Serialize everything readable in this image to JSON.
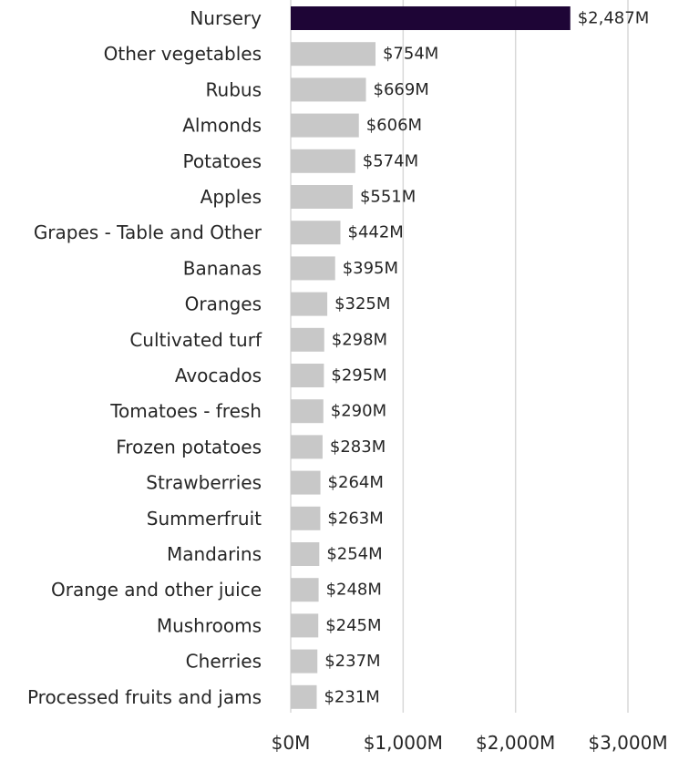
{
  "chart_data": {
    "type": "bar",
    "orientation": "horizontal",
    "categories": [
      "Nursery",
      "Other vegetables",
      "Rubus",
      "Almonds",
      "Potatoes",
      "Apples",
      "Grapes - Table and Other",
      "Bananas",
      "Oranges",
      "Cultivated turf",
      "Avocados",
      "Tomatoes - fresh",
      "Frozen potatoes",
      "Strawberries",
      "Summerfruit",
      "Mandarins",
      "Orange and other juice",
      "Mushrooms",
      "Cherries",
      "Processed fruits and jams"
    ],
    "values": [
      2487,
      754,
      669,
      606,
      574,
      551,
      442,
      395,
      325,
      298,
      295,
      290,
      283,
      264,
      263,
      254,
      248,
      245,
      237,
      231
    ],
    "value_labels": [
      "$2,487M",
      "$754M",
      "$669M",
      "$606M",
      "$574M",
      "$551M",
      "$442M",
      "$395M",
      "$325M",
      "$298M",
      "$295M",
      "$290M",
      "$283M",
      "$264M",
      "$263M",
      "$254M",
      "$248M",
      "$245M",
      "$237M",
      "$231M"
    ],
    "x_ticks": [
      0,
      1000,
      2000,
      3000
    ],
    "x_tick_labels": [
      "$0M",
      "$1,000M",
      "$2,000M",
      "$3,000M"
    ],
    "xlim": [
      0,
      3000
    ],
    "grid": true,
    "title": "",
    "xlabel": "",
    "ylabel": "",
    "colors": {
      "highlight": "#1e0536",
      "default": "#c8c8c8",
      "grid": "#d9d9d9",
      "text": "#262626"
    },
    "highlight_index": 0
  }
}
